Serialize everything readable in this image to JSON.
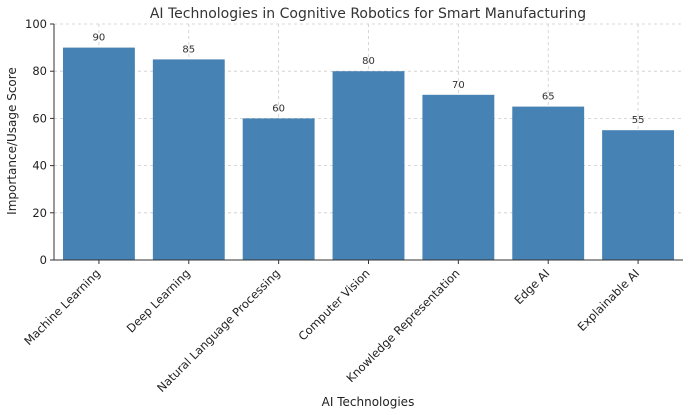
{
  "chart_data": {
    "type": "bar",
    "title": "AI Technologies in Cognitive Robotics for Smart Manufacturing",
    "xlabel": "AI Technologies",
    "ylabel": "Importance/Usage Score",
    "categories": [
      "Machine Learning",
      "Deep Learning",
      "Natural Language Processing",
      "Computer Vision",
      "Knowledge Representation",
      "Edge AI",
      "Explainable AI"
    ],
    "values": [
      90,
      85,
      60,
      80,
      70,
      65,
      55
    ],
    "ylim": [
      0,
      100
    ],
    "yticks": [
      0,
      20,
      40,
      60,
      80,
      100
    ],
    "grid": true,
    "bar_color": "#4682b4"
  }
}
